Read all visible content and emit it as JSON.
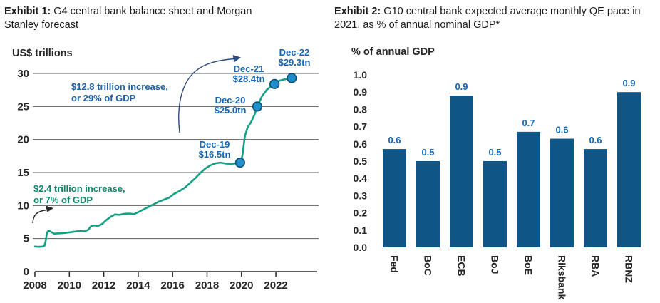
{
  "exhibits": [
    {
      "label": "Exhibit 1:",
      "title": "G4 central bank balance sheet and Morgan Stanley forecast"
    },
    {
      "label": "Exhibit 2:",
      "title": "G10 central bank expected average monthly QE pace in 2021, as % of annual nominal GDP*"
    }
  ],
  "chart_data": [
    {
      "type": "line",
      "title": "G4 central bank balance sheet and Morgan Stanley forecast",
      "ylabel": "US$ trillions",
      "ylim": [
        0,
        30
      ],
      "yticks": [
        0,
        5,
        10,
        15,
        20,
        25,
        30
      ],
      "xticks": [
        2008,
        2010,
        2012,
        2014,
        2016,
        2018,
        2020,
        2022
      ],
      "grid": "horizontal",
      "legend": "none",
      "line_color": "#12a183",
      "marker_color": "#1f8fca",
      "marker_edge_color": "#0e4d7a",
      "x": [
        2008.0,
        2008.2,
        2008.45,
        2008.55,
        2008.62,
        2008.7,
        2008.8,
        2008.95,
        2009.1,
        2009.4,
        2009.7,
        2010.0,
        2010.3,
        2010.6,
        2010.9,
        2011.1,
        2011.25,
        2011.45,
        2011.65,
        2011.9,
        2012.15,
        2012.4,
        2012.65,
        2012.9,
        2013.2,
        2013.5,
        2013.75,
        2014.0,
        2014.3,
        2014.6,
        2014.9,
        2015.2,
        2015.5,
        2015.8,
        2016.1,
        2016.4,
        2016.7,
        2017.0,
        2017.3,
        2017.6,
        2017.9,
        2018.2,
        2018.5,
        2018.8,
        2019.1,
        2019.4,
        2019.7,
        2019.92,
        2020.05,
        2020.2,
        2020.35,
        2020.55,
        2020.75,
        2020.92,
        2021.2,
        2021.5,
        2021.75,
        2021.92,
        2022.2,
        2022.5,
        2022.75,
        2022.92
      ],
      "y": [
        3.8,
        3.75,
        3.8,
        3.9,
        4.6,
        5.9,
        6.2,
        6.0,
        5.75,
        5.8,
        5.85,
        5.95,
        6.05,
        6.15,
        6.1,
        6.35,
        6.85,
        7.0,
        6.9,
        7.2,
        7.8,
        8.3,
        8.65,
        8.6,
        8.75,
        8.8,
        8.7,
        9.0,
        9.4,
        9.8,
        10.2,
        10.6,
        10.9,
        11.2,
        11.8,
        12.2,
        12.7,
        13.4,
        14.1,
        14.9,
        15.6,
        16.1,
        16.4,
        16.5,
        16.35,
        16.3,
        16.4,
        16.5,
        17.5,
        20.5,
        21.8,
        22.6,
        23.7,
        25.0,
        26.6,
        27.6,
        28.1,
        28.4,
        28.9,
        29.1,
        29.25,
        29.3
      ],
      "markers": [
        {
          "x": 2019.92,
          "y": 16.5,
          "label": "Dec-19\n$16.5tn"
        },
        {
          "x": 2020.92,
          "y": 25.0,
          "label": "Dec-20\n$25.0tn"
        },
        {
          "x": 2021.92,
          "y": 28.4,
          "label": "Dec-21\n$28.4tn"
        },
        {
          "x": 2022.92,
          "y": 29.3,
          "label": "Dec-22\n$29.3tn"
        }
      ],
      "annotations": [
        {
          "text": "$12.8 trillion increase,\nor 29% of GDP",
          "color": "#1d5ea8"
        },
        {
          "text": "$2.4 trillion increase,\nor 7% of GDP",
          "color": "#0d8668"
        }
      ]
    },
    {
      "type": "bar",
      "title": "G10 central bank expected average monthly QE pace in 2021, as % of annual nominal GDP*",
      "ylabel": "% of annual GDP",
      "ylim": [
        0,
        1.0
      ],
      "yticks": [
        "0.0",
        "0.1",
        "0.2",
        "0.3",
        "0.4",
        "0.5",
        "0.6",
        "0.7",
        "0.8",
        "0.9",
        "1.0"
      ],
      "grid": "off",
      "legend": "none",
      "categories": [
        "Fed",
        "BoC",
        "ECB",
        "BoJ",
        "BoE",
        "Riksbank",
        "RBA",
        "RBNZ"
      ],
      "values": [
        0.57,
        0.5,
        0.88,
        0.5,
        0.67,
        0.63,
        0.57,
        0.9
      ],
      "bar_labels": [
        "0.6",
        "0.5",
        "0.9",
        "0.5",
        "0.7",
        "0.6",
        "0.6",
        "0.9"
      ],
      "bar_color": "#0f5586",
      "label_color": "#1566b2"
    }
  ]
}
